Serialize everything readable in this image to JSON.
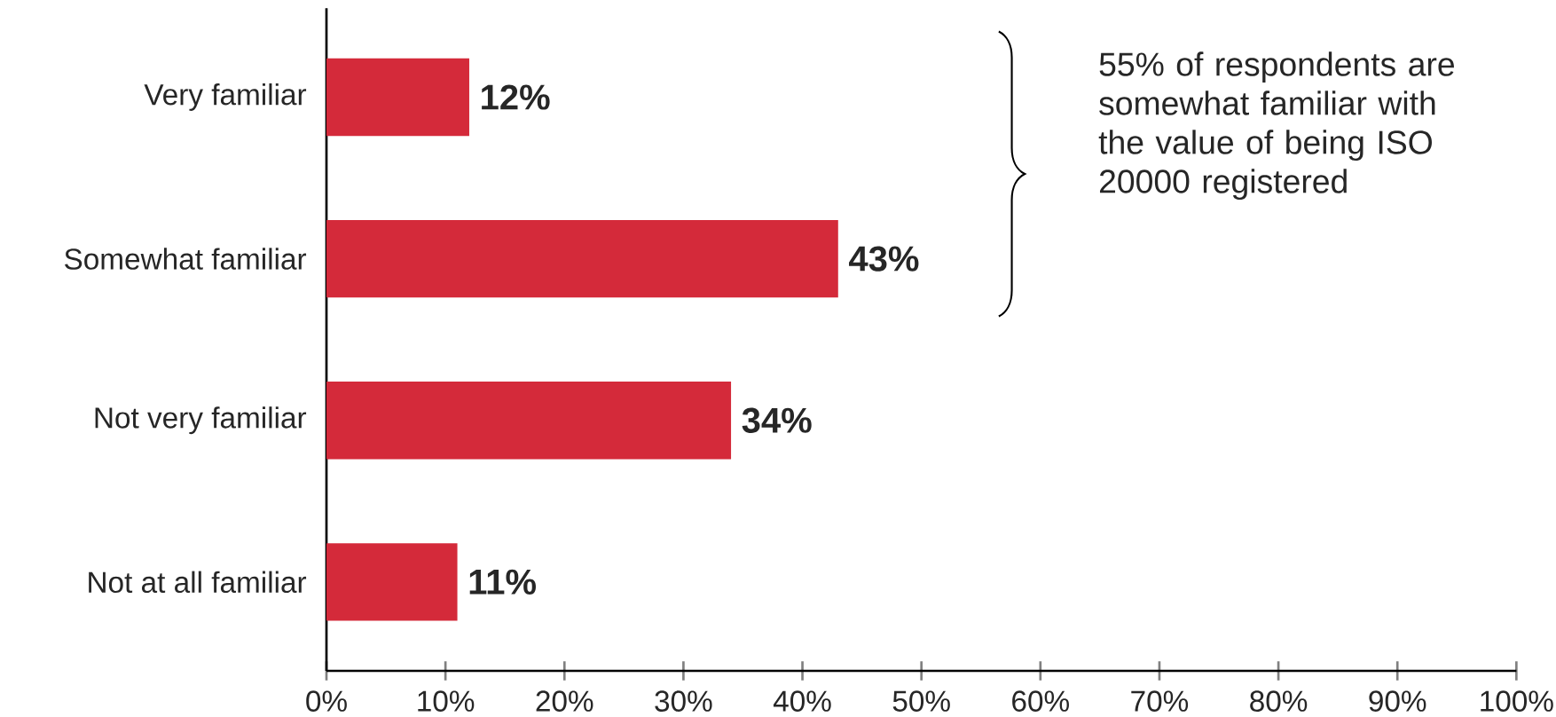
{
  "chart_data": {
    "type": "bar",
    "orientation": "horizontal",
    "categories": [
      "Very familiar",
      "Somewhat familiar",
      "Not very familiar",
      "Not at all familiar"
    ],
    "values": [
      12,
      43,
      34,
      11
    ],
    "value_labels": [
      "12%",
      "43%",
      "34%",
      "11%"
    ],
    "color": "#d42a3a",
    "xlim": [
      0,
      100
    ],
    "xticks": [
      {
        "value": 0,
        "label": "0%"
      },
      {
        "value": 10,
        "label": "10%"
      },
      {
        "value": 20,
        "label": "20%"
      },
      {
        "value": 30,
        "label": "30%"
      },
      {
        "value": 40,
        "label": "40%"
      },
      {
        "value": 50,
        "label": "50%"
      },
      {
        "value": 60,
        "label": "60%"
      },
      {
        "value": 70,
        "label": "70%"
      },
      {
        "value": 80,
        "label": "80%"
      },
      {
        "value": 90,
        "label": "90%"
      },
      {
        "value": 100,
        "label": "100%"
      }
    ],
    "grid": false,
    "annotations": [
      "55% of respondents are somewhat familiar with the value of being ISO 20000 registered"
    ]
  }
}
